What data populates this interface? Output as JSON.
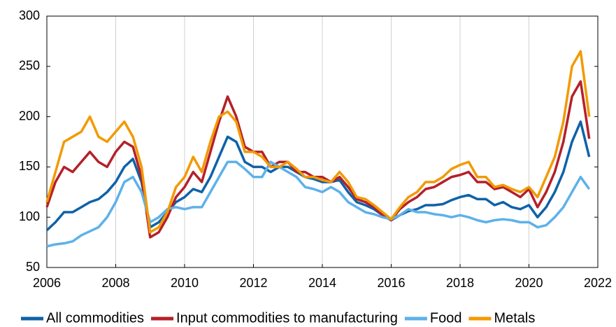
{
  "chart_data": {
    "type": "line",
    "x": [
      2006,
      2006.25,
      2006.5,
      2006.75,
      2007,
      2007.25,
      2007.5,
      2007.75,
      2008,
      2008.25,
      2008.5,
      2008.75,
      2009,
      2009.25,
      2009.5,
      2009.75,
      2010,
      2010.25,
      2010.5,
      2010.75,
      2011,
      2011.25,
      2011.5,
      2011.75,
      2012,
      2012.25,
      2012.5,
      2012.75,
      2013,
      2013.25,
      2013.5,
      2013.75,
      2014,
      2014.25,
      2014.5,
      2014.75,
      2015,
      2015.25,
      2015.5,
      2015.75,
      2016,
      2016.25,
      2016.5,
      2016.75,
      2017,
      2017.25,
      2017.5,
      2017.75,
      2018,
      2018.25,
      2018.5,
      2018.75,
      2019,
      2019.25,
      2019.5,
      2019.75,
      2020,
      2020.25,
      2020.5,
      2020.75,
      2021,
      2021.25,
      2021.5,
      2021.75
    ],
    "series": [
      {
        "name": "All commodities",
        "color": "#0e62a8",
        "values": [
          87,
          95,
          105,
          105,
          110,
          115,
          118,
          125,
          135,
          150,
          158,
          135,
          90,
          95,
          105,
          115,
          120,
          128,
          125,
          140,
          160,
          180,
          175,
          155,
          150,
          150,
          145,
          150,
          150,
          145,
          140,
          138,
          135,
          135,
          137,
          125,
          115,
          112,
          108,
          102,
          97,
          102,
          106,
          108,
          112,
          112,
          113,
          117,
          120,
          122,
          118,
          118,
          112,
          115,
          110,
          108,
          112,
          100,
          110,
          125,
          145,
          175,
          195,
          160
        ]
      },
      {
        "name": "Input commodities to manufacturing",
        "color": "#b5202a",
        "values": [
          110,
          135,
          150,
          145,
          155,
          165,
          155,
          150,
          165,
          175,
          170,
          140,
          80,
          85,
          100,
          120,
          130,
          145,
          135,
          165,
          195,
          220,
          200,
          170,
          165,
          165,
          150,
          155,
          155,
          145,
          145,
          140,
          140,
          135,
          140,
          130,
          118,
          115,
          110,
          102,
          97,
          108,
          115,
          120,
          128,
          130,
          135,
          140,
          142,
          145,
          135,
          135,
          128,
          130,
          125,
          120,
          128,
          110,
          125,
          145,
          175,
          220,
          235,
          178
        ]
      },
      {
        "name": "Food",
        "color": "#5db1ea",
        "values": [
          71,
          73,
          74,
          76,
          82,
          86,
          90,
          100,
          115,
          135,
          140,
          125,
          95,
          100,
          108,
          110,
          108,
          110,
          110,
          125,
          140,
          155,
          155,
          148,
          140,
          140,
          155,
          150,
          145,
          140,
          130,
          128,
          125,
          130,
          125,
          115,
          110,
          105,
          103,
          100,
          98,
          102,
          108,
          105,
          105,
          103,
          102,
          100,
          102,
          100,
          97,
          95,
          97,
          98,
          97,
          95,
          95,
          90,
          92,
          100,
          110,
          125,
          140,
          128
        ]
      },
      {
        "name": "Metals",
        "color": "#f29a00",
        "values": [
          115,
          145,
          175,
          180,
          185,
          200,
          180,
          175,
          185,
          195,
          180,
          150,
          85,
          90,
          105,
          130,
          140,
          160,
          145,
          175,
          200,
          205,
          195,
          165,
          165,
          160,
          150,
          150,
          155,
          148,
          140,
          140,
          137,
          135,
          145,
          135,
          120,
          118,
          112,
          105,
          98,
          110,
          120,
          125,
          135,
          135,
          140,
          148,
          152,
          155,
          140,
          140,
          130,
          132,
          128,
          125,
          130,
          120,
          140,
          160,
          195,
          250,
          265,
          200
        ]
      }
    ],
    "xlim": [
      2006,
      2022
    ],
    "xticks": [
      2006,
      2008,
      2010,
      2012,
      2014,
      2016,
      2018,
      2020,
      2022
    ],
    "ylim": [
      50,
      300
    ],
    "yticks": [
      50,
      100,
      150,
      200,
      250,
      300
    ],
    "grid": true,
    "legend": "bottom"
  }
}
